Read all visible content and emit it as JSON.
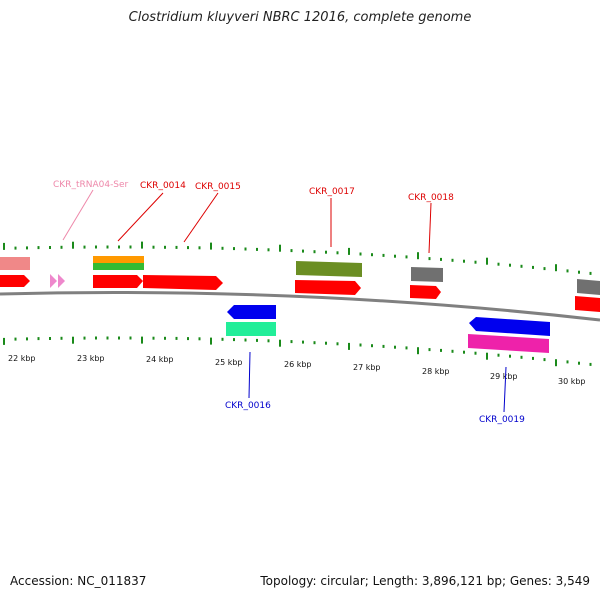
{
  "title": "Clostridium kluyveri NBRC 12016, complete genome",
  "footer": {
    "accession": "Accession: NC_011837",
    "summary": "Topology: circular; Length: 3,896,121 bp; Genes: 3,549"
  },
  "colors": {
    "backbone": "#808080",
    "tick": "#1a8a1a",
    "forward_label": "#dd0000",
    "reverse_label": "#0000cc",
    "trna_label": "#ee88aa"
  },
  "kbp_labels": [
    "22 kbp",
    "23 kbp",
    "24 kbp",
    "25 kbp",
    "26 kbp",
    "27 kbp",
    "28 kbp",
    "29 kbp",
    "30 kbp"
  ],
  "gene_labels": [
    {
      "id": "trna",
      "text": "CKR_tRNA04-Ser",
      "strand": "trna"
    },
    {
      "id": "g14",
      "text": "CKR_0014",
      "strand": "forward"
    },
    {
      "id": "g15",
      "text": "CKR_0015",
      "strand": "forward"
    },
    {
      "id": "g16",
      "text": "CKR_0016",
      "strand": "reverse"
    },
    {
      "id": "g17",
      "text": "CKR_0017",
      "strand": "forward"
    },
    {
      "id": "g18",
      "text": "CKR_0018",
      "strand": "forward"
    },
    {
      "id": "g19",
      "text": "CKR_0019",
      "strand": "reverse"
    }
  ]
}
